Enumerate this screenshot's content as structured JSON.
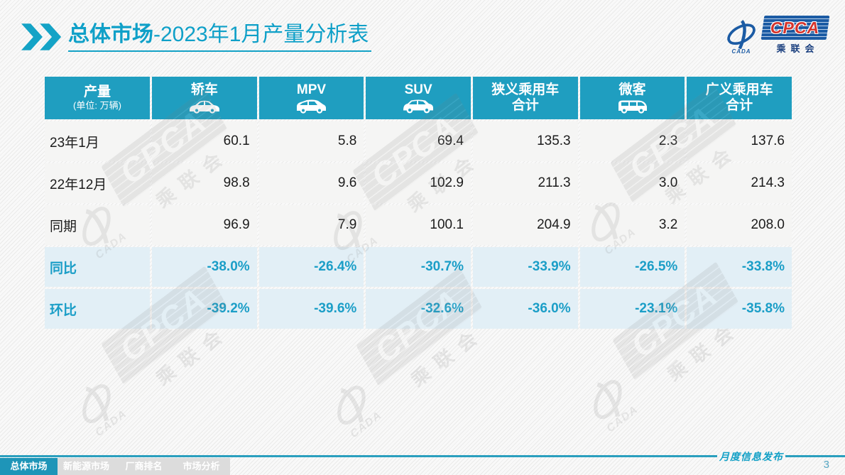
{
  "title": {
    "prefix_bold": "总体市场",
    "rest": "-2023年1月产量分析表"
  },
  "logo": {
    "acronym": "CPCA",
    "icon_text": "CADA",
    "cn_name": "乘联会"
  },
  "table": {
    "corner": {
      "label": "产量",
      "unit": "(单位: 万辆)"
    },
    "columns": [
      {
        "label": "轿车",
        "lines": [
          "轿车"
        ],
        "icon": "sedan-icon"
      },
      {
        "label": "MPV",
        "lines": [
          "MPV"
        ],
        "icon": "mpv-icon"
      },
      {
        "label": "SUV",
        "lines": [
          "SUV"
        ],
        "icon": "suv-icon"
      },
      {
        "label": "狭义乘用车合计",
        "lines": [
          "狭义乘用车",
          "合计"
        ],
        "icon": null
      },
      {
        "label": "微客",
        "lines": [
          "微客"
        ],
        "icon": "microvan-icon"
      },
      {
        "label": "广义乘用车合计",
        "lines": [
          "广义乘用车",
          "合计"
        ],
        "icon": null
      }
    ],
    "rows": [
      {
        "label": "23年1月",
        "type": "data",
        "values": [
          "60.1",
          "5.8",
          "69.4",
          "135.3",
          "2.3",
          "137.6"
        ]
      },
      {
        "label": "22年12月",
        "type": "data",
        "values": [
          "98.8",
          "9.6",
          "102.9",
          "211.3",
          "3.0",
          "214.3"
        ]
      },
      {
        "label": "同期",
        "type": "data",
        "values": [
          "96.9",
          "7.9",
          "100.1",
          "204.9",
          "3.2",
          "208.0"
        ]
      },
      {
        "label": "同比",
        "type": "pct",
        "values": [
          "-38.0%",
          "-26.4%",
          "-30.7%",
          "-33.9%",
          "-26.5%",
          "-33.8%"
        ]
      },
      {
        "label": "环比",
        "type": "pct",
        "values": [
          "-39.2%",
          "-39.6%",
          "-32.6%",
          "-36.0%",
          "-23.1%",
          "-35.8%"
        ]
      }
    ]
  },
  "footer": {
    "tabs": [
      {
        "label": "总体市场",
        "active": true
      },
      {
        "label": "新能源市场",
        "active": false
      },
      {
        "label": "厂商排名",
        "active": false
      },
      {
        "label": "市场分析",
        "active": false
      }
    ],
    "publication": "月度信息发布",
    "page": "3"
  },
  "colors": {
    "header_teal": "#1f9ec0",
    "title_teal": "#0fa0c8",
    "pct_text_teal": "#1b9ec7",
    "pct_row_blue": "#e2eff6",
    "active_tab_teal": "#1e95b8",
    "logo_blue": "#1b5ba4",
    "logo_red": "#d5342c",
    "rule_teal": "#2a9fbe"
  }
}
